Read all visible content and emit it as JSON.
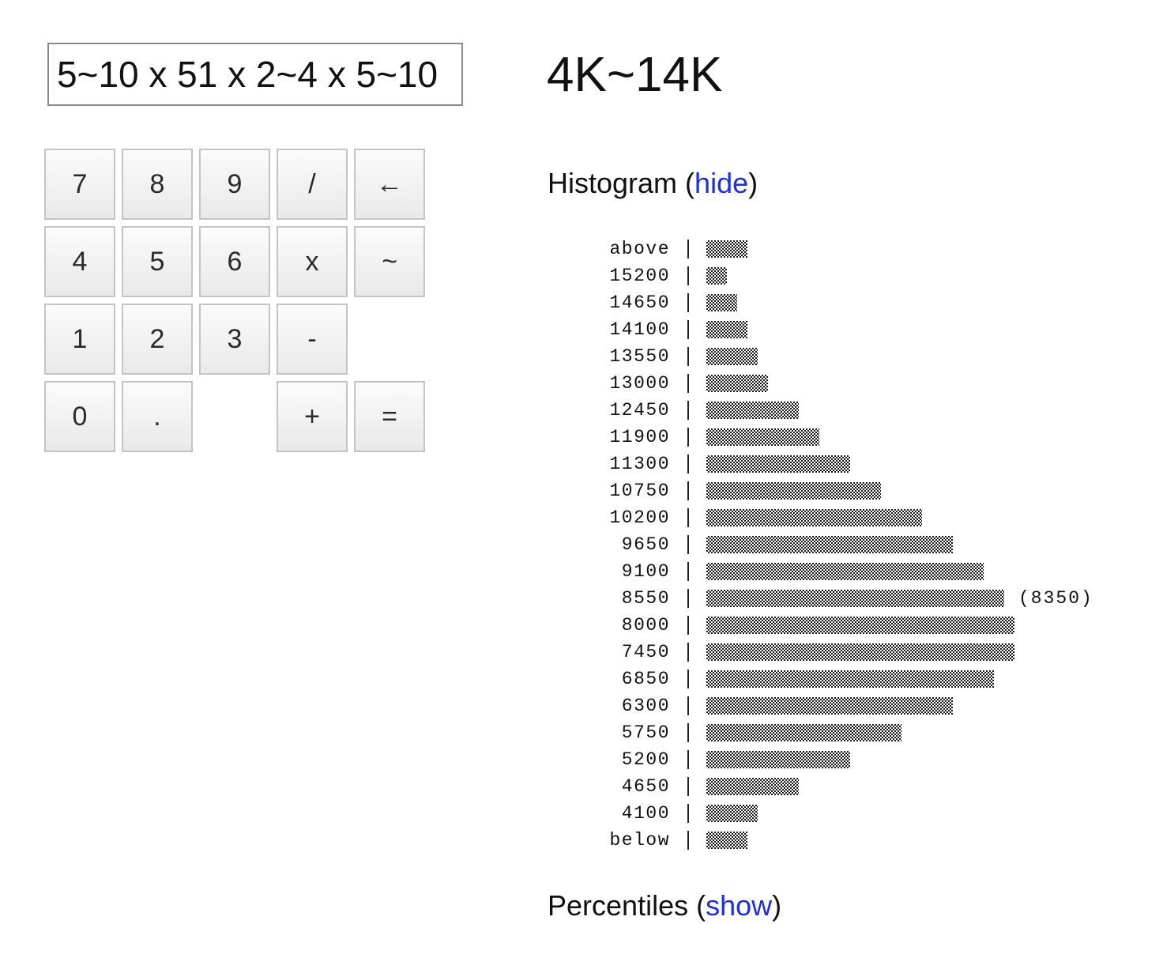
{
  "expression": {
    "value": "5~10 x 51 x 2~4 x 5~10"
  },
  "keypad": {
    "keys": [
      {
        "label": "7",
        "name": "key-7"
      },
      {
        "label": "8",
        "name": "key-8"
      },
      {
        "label": "9",
        "name": "key-9"
      },
      {
        "label": "/",
        "name": "key-divide"
      },
      {
        "label": "←",
        "name": "key-backspace"
      },
      {
        "label": "4",
        "name": "key-4"
      },
      {
        "label": "5",
        "name": "key-5"
      },
      {
        "label": "6",
        "name": "key-6"
      },
      {
        "label": "x",
        "name": "key-multiply"
      },
      {
        "label": "~",
        "name": "key-range"
      },
      {
        "label": "1",
        "name": "key-1"
      },
      {
        "label": "2",
        "name": "key-2"
      },
      {
        "label": "3",
        "name": "key-3"
      },
      {
        "label": "-",
        "name": "key-minus"
      },
      {
        "label": "0",
        "name": "key-0"
      },
      {
        "label": ".",
        "name": "key-decimal"
      },
      {
        "label": "+",
        "name": "key-plus"
      },
      {
        "label": "=",
        "name": "key-equals"
      }
    ]
  },
  "result": {
    "text": "4K~14K"
  },
  "histogram_section": {
    "title": "Histogram",
    "open_paren": " (",
    "link": "hide",
    "close_paren": ")"
  },
  "percentiles_section": {
    "title": "Percentiles",
    "open_paren": " (",
    "link": "show",
    "close_paren": ")"
  },
  "chart_data": {
    "type": "bar",
    "orientation": "horizontal",
    "categories": [
      "above",
      "15200",
      "14650",
      "14100",
      "13550",
      "13000",
      "12450",
      "11900",
      "11300",
      "10750",
      "10200",
      "9650",
      "9100",
      "8550",
      "8000",
      "7450",
      "6850",
      "6300",
      "5750",
      "5200",
      "4650",
      "4100",
      "below"
    ],
    "values": [
      4,
      2,
      3,
      4,
      5,
      6,
      9,
      11,
      14,
      17,
      21,
      24,
      27,
      29,
      30,
      30,
      28,
      24,
      19,
      14,
      9,
      5,
      4
    ],
    "annotations": [
      {
        "category": "8550",
        "text": "(8350)"
      }
    ]
  }
}
